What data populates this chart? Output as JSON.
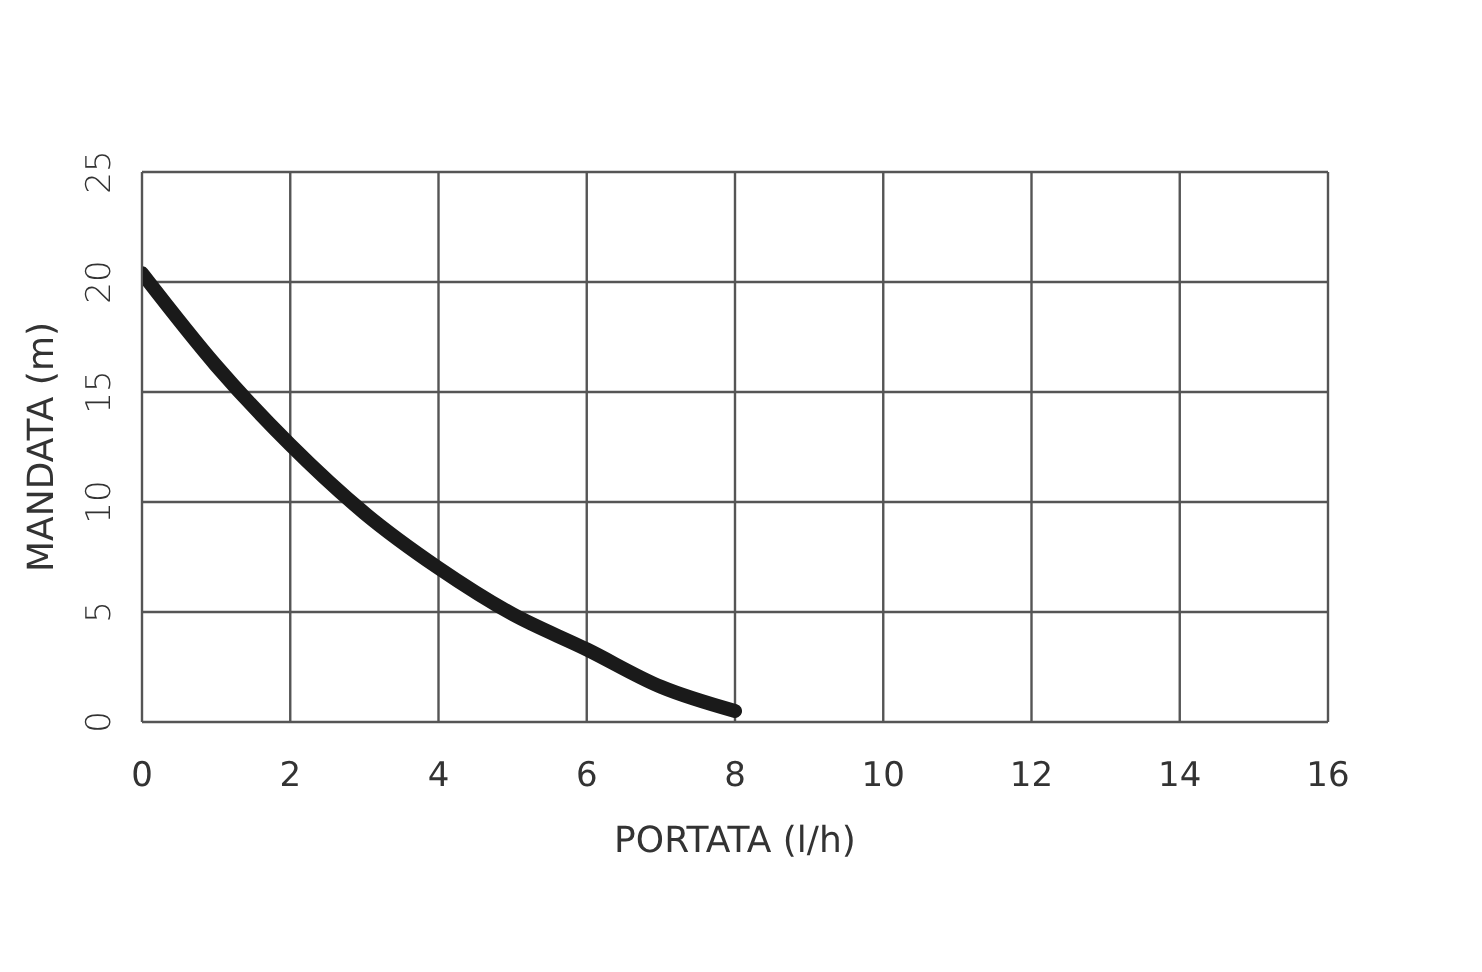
{
  "chart_data": {
    "type": "line",
    "xlabel": "PORTATA (l/h)",
    "ylabel": "MANDATA (m)",
    "x": [
      0,
      1,
      2,
      3,
      4,
      5,
      6,
      7,
      8
    ],
    "series": [
      {
        "color": "#1a1a1a",
        "values": [
          20.4,
          16.2,
          12.6,
          9.5,
          7.0,
          4.9,
          3.3,
          1.6,
          0.5
        ]
      }
    ],
    "xlim": [
      0,
      16
    ],
    "xticks": [
      0,
      2,
      4,
      6,
      8,
      10,
      12,
      14,
      16
    ],
    "ylim": [
      0,
      25
    ],
    "yticks": [
      0,
      5,
      10,
      15,
      20,
      25
    ],
    "grid": true
  }
}
